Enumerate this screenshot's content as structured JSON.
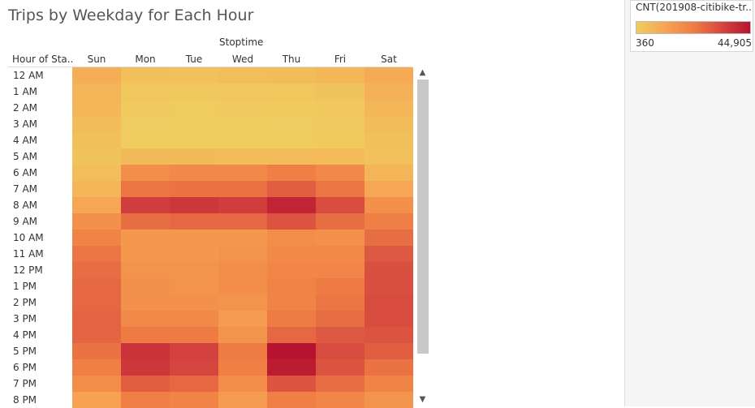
{
  "chart_data": {
    "type": "heatmap",
    "title": "Trips by Weekday for Each Hour",
    "x_title": "Stoptime",
    "y_title": "Hour of Sta..",
    "columns": [
      "Sun",
      "Mon",
      "Tue",
      "Wed",
      "Thu",
      "Fri",
      "Sat"
    ],
    "rows": [
      "12 AM",
      "1 AM",
      "2 AM",
      "3 AM",
      "4 AM",
      "5 AM",
      "6 AM",
      "7 AM",
      "8 AM",
      "9 AM",
      "10 AM",
      "11 AM",
      "12 PM",
      "1 PM",
      "2 PM",
      "3 PM",
      "4 PM",
      "5 PM",
      "6 PM",
      "7 PM",
      "8 PM"
    ],
    "values": [
      [
        8500,
        4000,
        3500,
        4500,
        5000,
        6500,
        9500
      ],
      [
        7000,
        2000,
        1800,
        2000,
        2200,
        3000,
        8000
      ],
      [
        6500,
        1200,
        1000,
        1100,
        1300,
        1800,
        6500
      ],
      [
        5000,
        800,
        700,
        700,
        800,
        1100,
        5000
      ],
      [
        4000,
        1000,
        900,
        900,
        1000,
        1300,
        3800
      ],
      [
        3000,
        5500,
        5500,
        5000,
        5200,
        5200,
        3500
      ],
      [
        4500,
        18000,
        19000,
        19000,
        22000,
        19000,
        7000
      ],
      [
        6500,
        24000,
        25000,
        25000,
        29000,
        24000,
        11000
      ],
      [
        11000,
        36000,
        37000,
        36000,
        41000,
        33000,
        17000
      ],
      [
        17000,
        26000,
        27000,
        27000,
        31000,
        26000,
        22000
      ],
      [
        21000,
        15000,
        15000,
        15000,
        18000,
        17000,
        26000
      ],
      [
        24000,
        15000,
        15000,
        16000,
        19000,
        19000,
        30000
      ],
      [
        26000,
        16000,
        16000,
        18000,
        20000,
        20000,
        32000
      ],
      [
        27000,
        17000,
        16000,
        18000,
        21000,
        23000,
        32000
      ],
      [
        27000,
        17000,
        17000,
        16000,
        21000,
        24000,
        33000
      ],
      [
        28000,
        19000,
        19000,
        14000,
        23000,
        26000,
        33000
      ],
      [
        28000,
        23000,
        23000,
        16000,
        27000,
        30000,
        31000
      ],
      [
        25000,
        38000,
        35000,
        23000,
        44905,
        33000,
        29000
      ],
      [
        22000,
        37000,
        34000,
        22000,
        43000,
        31000,
        25000
      ],
      [
        18000,
        29000,
        27000,
        18000,
        31000,
        26000,
        21000
      ],
      [
        12000,
        22000,
        21000,
        14000,
        22000,
        20000,
        16000
      ]
    ],
    "legend": {
      "title": "CNT(201908-citibike-tr...",
      "min": 360,
      "max": 44905,
      "min_label": "360",
      "max_label": "44,905",
      "colors": [
        "#f0cd5f",
        "#f6a453",
        "#ef7d44",
        "#d6473f",
        "#b5132f"
      ]
    }
  },
  "ui": {
    "scroll_up": "^",
    "scroll_down": "v"
  }
}
